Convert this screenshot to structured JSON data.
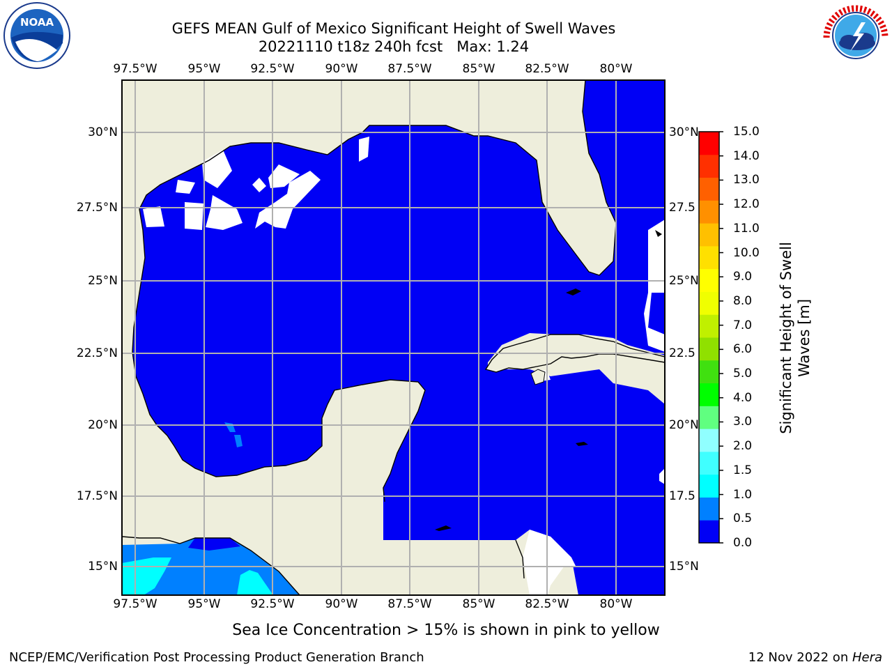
{
  "title_line1": "GEFS MEAN Gulf of Mexico Significant Height of Swell Waves",
  "title_line2": "20221110 t18z 240h fcst   Max: 1.24",
  "lon_ticks": [
    "97.5°W",
    "95°W",
    "92.5°W",
    "90°W",
    "87.5°W",
    "85°W",
    "82.5°W",
    "80°W"
  ],
  "lat_ticks": [
    "30°N",
    "27.5°N",
    "25°N",
    "22.5°N",
    "20°N",
    "17.5°N",
    "15°N"
  ],
  "lat_ticks_right": [
    "30°N",
    "27.5",
    "25°N",
    "22.5",
    "20°N",
    "17.5",
    "15°N"
  ],
  "colorbar": {
    "label_line1": "Significant Height of Swell",
    "label_line2": "Waves [m]",
    "ticks": [
      "15.0",
      "14.0",
      "13.0",
      "12.0",
      "11.0",
      "10.0",
      "9.0",
      "8.0",
      "7.0",
      "6.0",
      "5.0",
      "4.0",
      "3.0",
      "2.0",
      "1.5",
      "1.0",
      "0.5",
      "0.0"
    ],
    "colors": [
      "#0000f5",
      "#0080ff",
      "#00ffff",
      "#40ffff",
      "#90ffff",
      "#60ff80",
      "#00ff00",
      "#40e010",
      "#90e000",
      "#c0f000",
      "#f0ff00",
      "#ffff00",
      "#ffe000",
      "#ffc000",
      "#ff9000",
      "#ff6000",
      "#ff3000",
      "#ff0000"
    ]
  },
  "note": "Sea Ice Concentration > 15% is shown in pink to yellow",
  "footer_left": "NCEP/EMC/Verification Post Processing Product Generation Branch",
  "footer_right_date": "12 Nov 2022 on ",
  "footer_right_host": "Hera",
  "logos": {
    "left": "NOAA",
    "right_text": "NATIONAL WEATHER SERVICE"
  },
  "map_colors": {
    "land": "#eeeedc",
    "ocean": "#0000f5",
    "border": "#000000",
    "grid": "#b0b0b0"
  }
}
